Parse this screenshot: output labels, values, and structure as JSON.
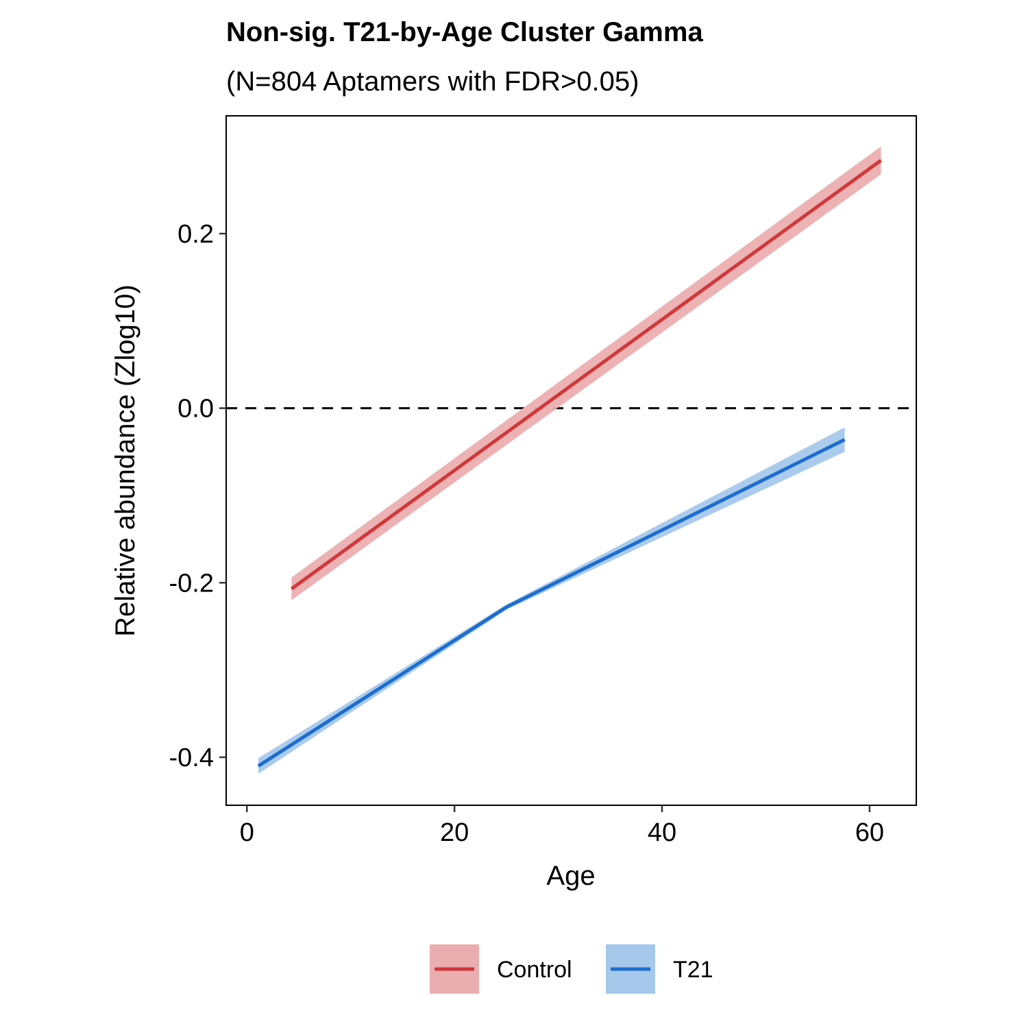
{
  "chart_data": {
    "type": "line",
    "title": "Non-sig. T21-by-Age Cluster Gamma",
    "subtitle": "(N=804 Aptamers with FDR>0.05)",
    "xlabel": "Age",
    "ylabel": "Relative abundance (Zlog10)",
    "xlim": [
      -2,
      64.5
    ],
    "ylim": [
      -0.455,
      0.335
    ],
    "x_ticks": [
      0,
      20,
      40,
      60
    ],
    "y_ticks": [
      -0.4,
      -0.2,
      0.0,
      0.2
    ],
    "x_tick_labels": [
      "0",
      "20",
      "40",
      "60"
    ],
    "y_tick_labels": [
      "-0.4",
      "-0.2",
      "0.0",
      "0.2"
    ],
    "reference_line": {
      "y": 0.0,
      "style": "dashed",
      "color": "#000000"
    },
    "grid": false,
    "legend_position": "bottom",
    "series": [
      {
        "name": "Control",
        "color": "#D0383A",
        "band_color": "#EBAEB0",
        "x": [
          4.3,
          61.1
        ],
        "y": [
          -0.207,
          0.284
        ],
        "lower": [
          -0.22,
          0.268
        ],
        "upper": [
          -0.194,
          0.3
        ]
      },
      {
        "name": "T21",
        "color": "#1C6DD0",
        "band_color": "#A5C8EB",
        "x": [
          1.1,
          25.0,
          57.6
        ],
        "y": [
          -0.41,
          -0.228,
          -0.036
        ],
        "lower": [
          -0.419,
          -0.231,
          -0.05
        ],
        "upper": [
          -0.401,
          -0.225,
          -0.022
        ]
      }
    ]
  }
}
